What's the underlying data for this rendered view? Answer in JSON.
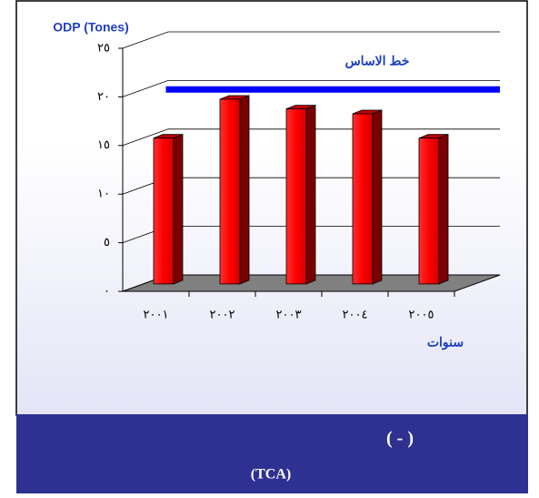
{
  "chart_data": {
    "type": "bar3d",
    "ylabel": "ODP (Tones)",
    "xlabel": "سنوات",
    "categories": [
      "٢٠٠١",
      "٢٠٠٢",
      "٢٠٠٣",
      "٢٠٠٤",
      "٢٠٠٥"
    ],
    "values": [
      15,
      19,
      18,
      17.5,
      15
    ],
    "color": "#ff0000",
    "ylim": [
      0,
      25
    ],
    "yticks": [
      {
        "value": 0,
        "label": "٠"
      },
      {
        "value": 5,
        "label": "٥"
      },
      {
        "value": 10,
        "label": "١٠"
      },
      {
        "value": 15,
        "label": "١٥"
      },
      {
        "value": 20,
        "label": "٢٠"
      },
      {
        "value": 25,
        "label": "٢٥"
      }
    ],
    "grid": true,
    "baseline": {
      "label": "خط الاساس",
      "value": 20,
      "color": "#0000ff"
    }
  },
  "footer": {
    "line1": "( - )",
    "line2": "(TCA)"
  }
}
